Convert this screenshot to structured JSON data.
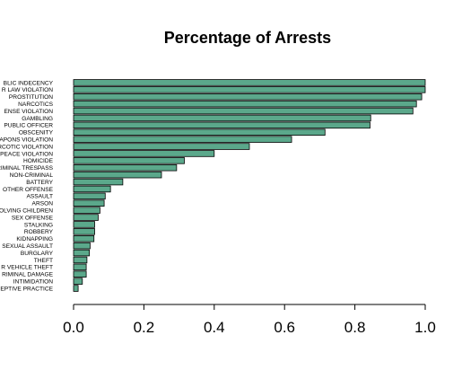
{
  "chart_data": {
    "type": "bar",
    "orientation": "horizontal",
    "title": "Percentage of Arrests",
    "xlabel": "",
    "ylabel": "",
    "xlim": [
      0,
      1
    ],
    "xticks": [
      "0.0",
      "0.2",
      "0.4",
      "0.6",
      "0.8",
      "1.0"
    ],
    "tick_values": [
      0,
      0.2,
      0.4,
      0.6,
      0.8,
      1.0
    ],
    "bar_color": "#5ba88b",
    "border_color": "#000000",
    "grid": false,
    "legend": "none",
    "categories": [
      "BLIC INDECENCY",
      "R LAW VIOLATION",
      "PROSTITUTION",
      "NARCOTICS",
      "ENSE VIOLATION",
      "GAMBLING",
      "PUBLIC OFFICER",
      "OBSCENITY",
      "APONS VIOLATION",
      "RCOTIC VIOLATION",
      "PEACE VIOLATION",
      "HOMICIDE",
      "RIMINAL TRESPASS",
      "NON-CRIMINAL",
      "BATTERY",
      "OTHER OFFENSE",
      "ASSAULT",
      "ARSON",
      "OLVING CHILDREN",
      "SEX OFFENSE",
      "STALKING",
      "ROBBERY",
      "KIDNAPPING",
      "SEXUAL ASSAULT",
      "BURGLARY",
      "THEFT",
      "R VEHICLE THEFT",
      "RIMINAL DAMAGE",
      "INTIMIDATION",
      "EPTIVE PRACTICE"
    ],
    "values": [
      1.0,
      1.0,
      0.99,
      0.975,
      0.965,
      0.845,
      0.843,
      0.715,
      0.62,
      0.5,
      0.4,
      0.315,
      0.293,
      0.25,
      0.14,
      0.105,
      0.09,
      0.087,
      0.075,
      0.07,
      0.06,
      0.06,
      0.058,
      0.047,
      0.045,
      0.038,
      0.036,
      0.036,
      0.025,
      0.013
    ]
  }
}
